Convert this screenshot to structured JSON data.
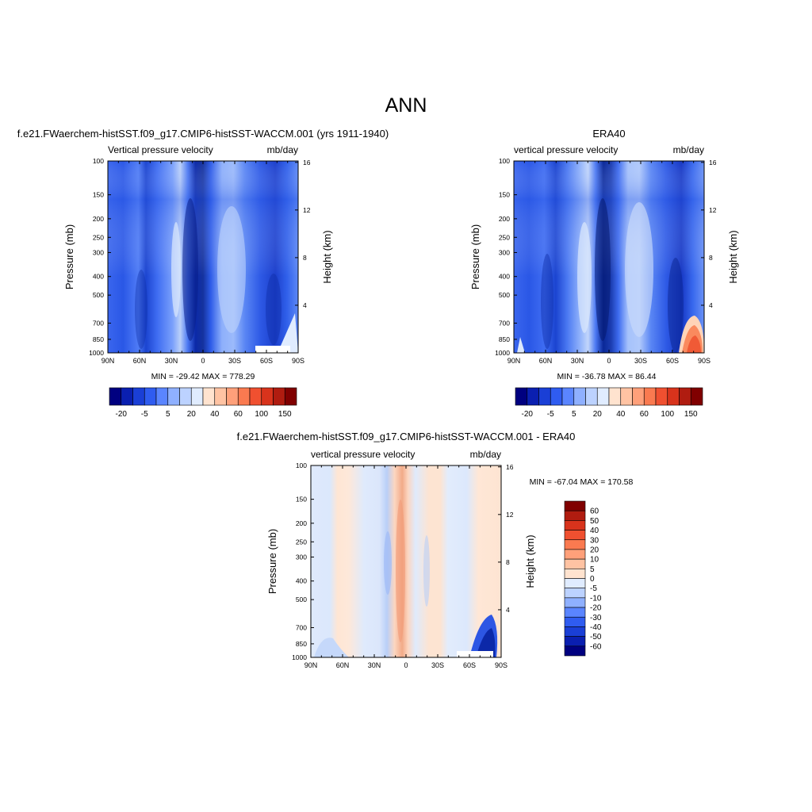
{
  "page_title": "ANN",
  "chart_data": [
    {
      "type": "heatmap",
      "title": "f.e21.FWaerchem-histSST.f09_g17.CMIP6-histSST-WACCM.001 (yrs 1911-1940)",
      "left_subtitle": "Vertical pressure velocity",
      "right_subtitle": "mb/day",
      "ylabel": "Pressure (mb)",
      "ylabel_right": "Height (km)",
      "x_ticks": [
        "90N",
        "60N",
        "30N",
        "0",
        "30S",
        "60S",
        "90S"
      ],
      "y_ticks": [
        "100",
        "150",
        "200",
        "250",
        "300",
        "400",
        "500",
        "700",
        "850",
        "1000"
      ],
      "y_right_ticks": [
        "16",
        "12",
        "8",
        "4"
      ],
      "min_max": "MIN = -29.42  MAX = 778.29",
      "colorbar": {
        "orientation": "horizontal",
        "labels": [
          "-20",
          "-5",
          "5",
          "20",
          "40",
          "60",
          "100",
          "150"
        ],
        "colors": [
          "#000080",
          "#0a1fb0",
          "#1a3fd6",
          "#2f5cf0",
          "#5a85ff",
          "#8fb0ff",
          "#bcd2ff",
          "#e0ecff",
          "#ffe3cf",
          "#ffc3a3",
          "#ffa07a",
          "#fa7a50",
          "#f05030",
          "#d8331c",
          "#b01c10",
          "#800000"
        ]
      }
    },
    {
      "type": "heatmap",
      "title": "ERA40",
      "left_subtitle": "vertical pressure velocity",
      "right_subtitle": "mb/day",
      "ylabel": "Pressure (mb)",
      "ylabel_right": "Height (km)",
      "x_ticks": [
        "90N",
        "60N",
        "30N",
        "0",
        "30S",
        "60S",
        "90S"
      ],
      "y_ticks": [
        "100",
        "150",
        "200",
        "250",
        "300",
        "400",
        "500",
        "700",
        "850",
        "1000"
      ],
      "y_right_ticks": [
        "16",
        "12",
        "8",
        "4"
      ],
      "min_max": "MIN = -36.78  MAX =  86.44",
      "colorbar": {
        "orientation": "horizontal",
        "labels": [
          "-20",
          "-5",
          "5",
          "20",
          "40",
          "60",
          "100",
          "150"
        ],
        "colors": [
          "#000080",
          "#0a1fb0",
          "#1a3fd6",
          "#2f5cf0",
          "#5a85ff",
          "#8fb0ff",
          "#bcd2ff",
          "#e0ecff",
          "#ffe3cf",
          "#ffc3a3",
          "#ffa07a",
          "#fa7a50",
          "#f05030",
          "#d8331c",
          "#b01c10",
          "#800000"
        ]
      }
    },
    {
      "type": "heatmap",
      "title": "f.e21.FWaerchem-histSST.f09_g17.CMIP6-histSST-WACCM.001 - ERA40",
      "left_subtitle": "vertical pressure velocity",
      "right_subtitle": "mb/day",
      "ylabel": "Pressure (mb)",
      "ylabel_right": "Height (km)",
      "x_ticks": [
        "90N",
        "60N",
        "30N",
        "0",
        "30S",
        "60S",
        "90S"
      ],
      "y_ticks": [
        "100",
        "150",
        "200",
        "250",
        "300",
        "400",
        "500",
        "700",
        "850",
        "1000"
      ],
      "y_right_ticks": [
        "16",
        "12",
        "8",
        "4"
      ],
      "min_max": "MIN = -67.04  MAX = 170.58",
      "colorbar": {
        "orientation": "vertical",
        "labels": [
          "60",
          "50",
          "40",
          "30",
          "20",
          "10",
          "5",
          "0",
          "-5",
          "-10",
          "-20",
          "-30",
          "-40",
          "-50",
          "-60"
        ],
        "colors": [
          "#800000",
          "#b01c10",
          "#d8331c",
          "#f05030",
          "#fa7a50",
          "#ffa07a",
          "#ffc3a3",
          "#ffe3cf",
          "#e0ecff",
          "#bcd2ff",
          "#8fb0ff",
          "#5a85ff",
          "#2f5cf0",
          "#1a3fd6",
          "#0a1fb0",
          "#000080"
        ]
      }
    }
  ]
}
